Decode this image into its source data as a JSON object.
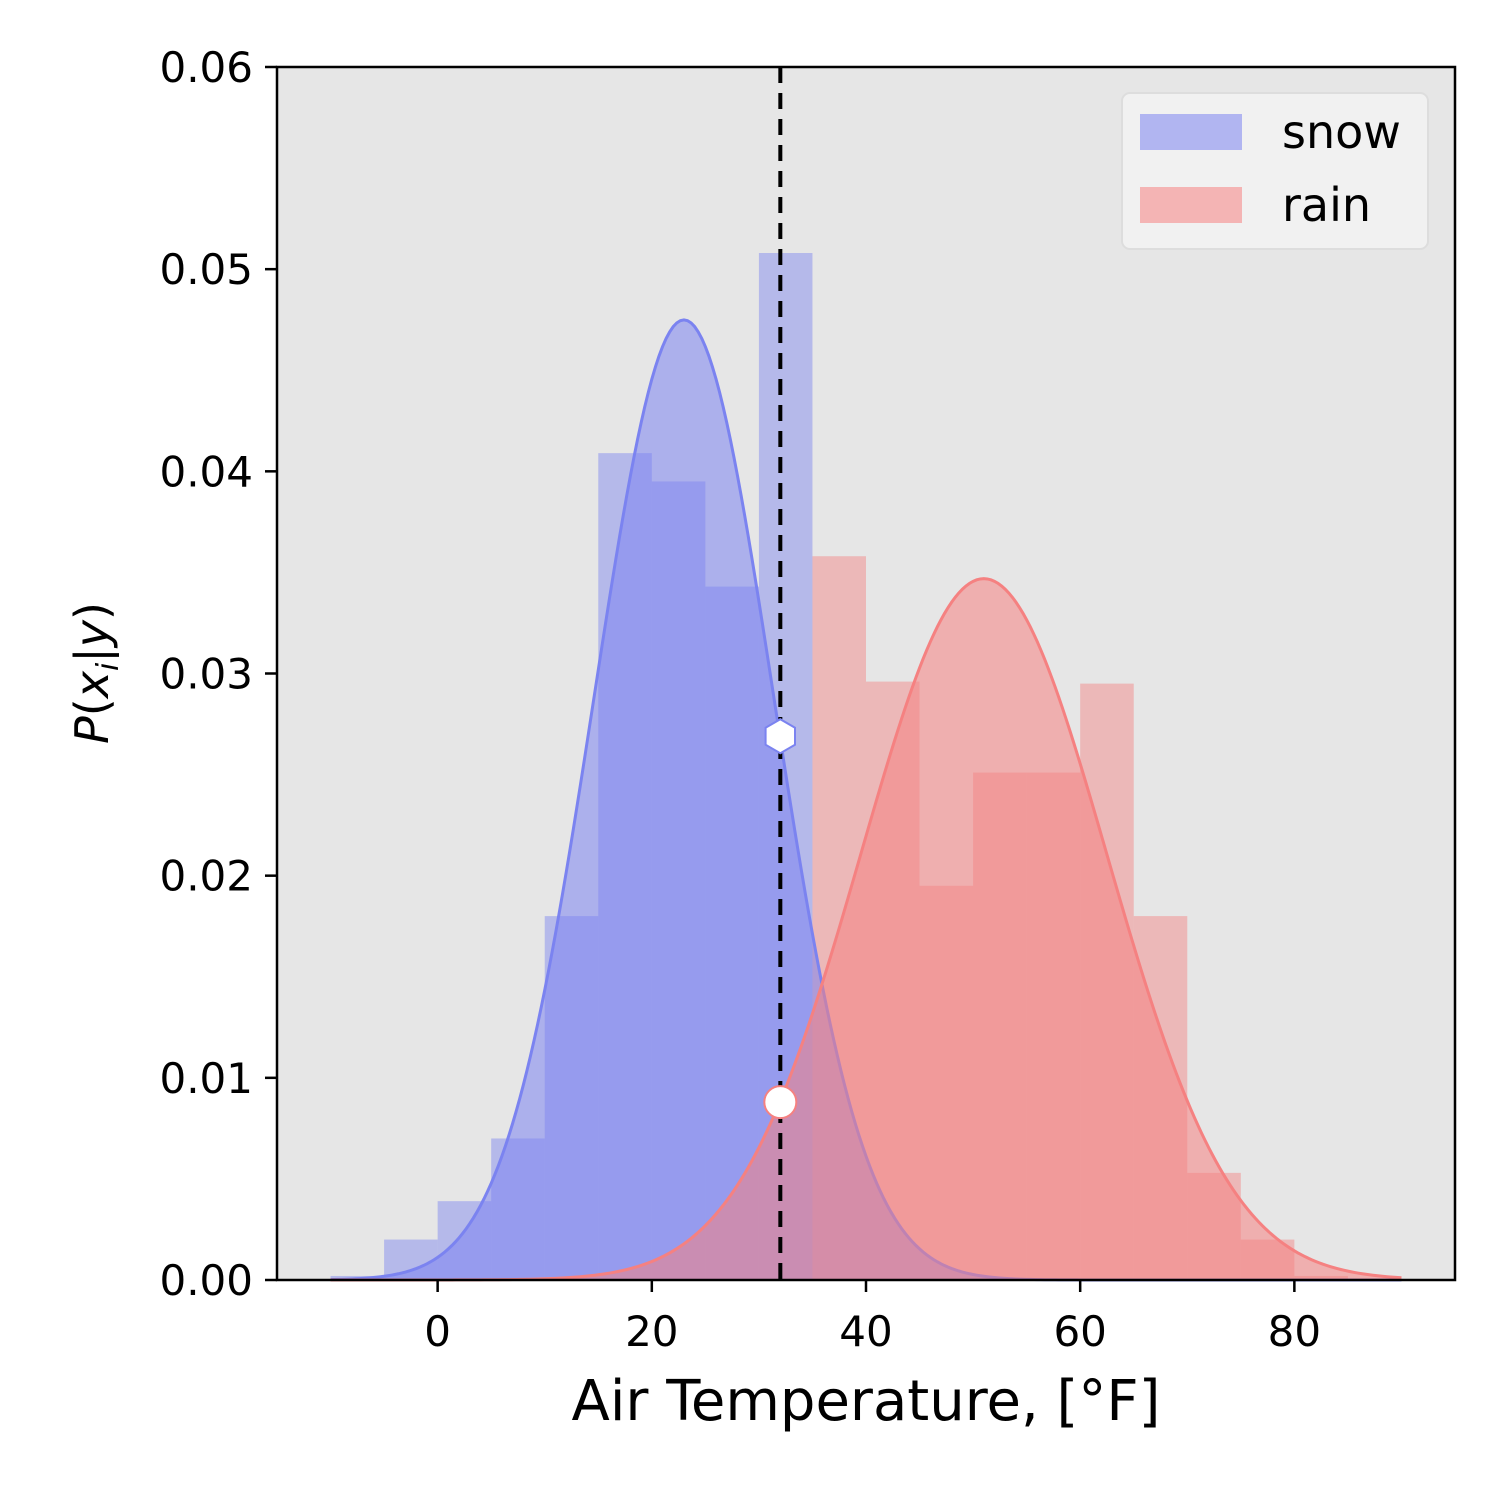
{
  "chart_data": {
    "type": "histogram-with-density",
    "xlabel": "Air Temperature, [°F]",
    "ylabel": "P(x_i|y)",
    "xlim": [
      -15,
      95
    ],
    "ylim": [
      0,
      0.06
    ],
    "xticks": [
      0,
      20,
      40,
      60,
      80
    ],
    "yticks": [
      0.0,
      0.01,
      0.02,
      0.03,
      0.04,
      0.05,
      0.06
    ],
    "xtick_labels": [
      "0",
      "20",
      "40",
      "60",
      "80"
    ],
    "ytick_labels": [
      "0.00",
      "0.01",
      "0.02",
      "0.03",
      "0.04",
      "0.05",
      "0.06"
    ],
    "background": "#e6e6e6",
    "grid": false,
    "legend_position": "top-right",
    "threshold_x": 32,
    "series": [
      {
        "name": "snow",
        "color": "#7b83f0",
        "histogram": {
          "bin_edges": [
            -10,
            -5,
            0,
            5,
            10,
            15,
            20,
            25,
            30,
            35,
            40
          ],
          "values": [
            0.0002,
            0.002,
            0.0039,
            0.007,
            0.018,
            0.0409,
            0.0395,
            0.0343,
            0.0508,
            0.0
          ]
        },
        "normal": {
          "mean": 23,
          "sd": 8.4,
          "xmin": -10,
          "xmax": 90
        },
        "marker": {
          "x": 32,
          "y": 0.0269,
          "shape": "hexagon"
        }
      },
      {
        "name": "rain",
        "color": "#f58181",
        "histogram": {
          "bin_edges": [
            30,
            35,
            40,
            45,
            50,
            55,
            60,
            65,
            70,
            75,
            80,
            85
          ],
          "values": [
            0.0,
            0.0358,
            0.0296,
            0.0195,
            0.0251,
            0.0251,
            0.0295,
            0.018,
            0.0053,
            0.002,
            0.0002
          ]
        },
        "normal": {
          "mean": 51,
          "sd": 11.5,
          "xmin": -10,
          "xmax": 90
        },
        "marker": {
          "x": 32,
          "y": 0.0088,
          "shape": "circle"
        }
      }
    ]
  }
}
